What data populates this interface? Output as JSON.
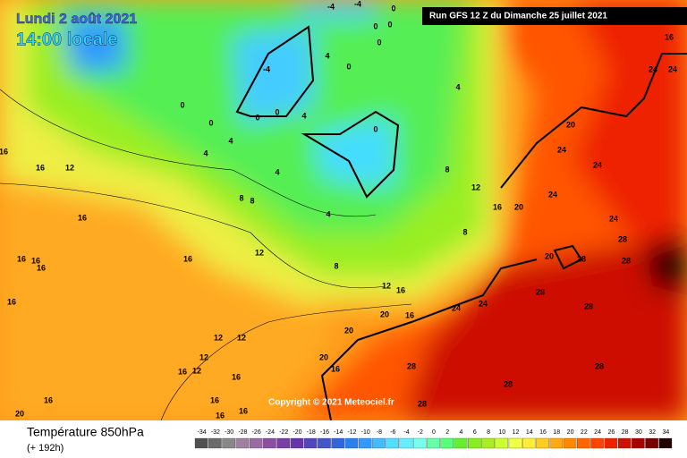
{
  "header": {
    "date": "Lundi 2 août 2021",
    "time": "14:00 locale",
    "run": "Run GFS 12 Z du Dimanche 25 juillet 2021"
  },
  "copyright": "Copyright © 2021 Meteociel.fr",
  "legend": {
    "title": "Température 850hPa",
    "subtitle": "(+ 192h)",
    "scale": [
      {
        "value": -34,
        "color": "#505050"
      },
      {
        "value": -32,
        "color": "#6b6b6b"
      },
      {
        "value": -30,
        "color": "#888888"
      },
      {
        "value": -28,
        "color": "#a080a0"
      },
      {
        "value": -26,
        "color": "#9b6aa0"
      },
      {
        "value": -24,
        "color": "#8a4fa0"
      },
      {
        "value": -22,
        "color": "#7a3fa0"
      },
      {
        "value": -20,
        "color": "#6633aa"
      },
      {
        "value": -18,
        "color": "#5544bb"
      },
      {
        "value": -16,
        "color": "#4455cc"
      },
      {
        "value": -14,
        "color": "#3366dd"
      },
      {
        "value": -12,
        "color": "#2a7ff0"
      },
      {
        "value": -10,
        "color": "#3399ff"
      },
      {
        "value": -8,
        "color": "#44bbff"
      },
      {
        "value": -6,
        "color": "#55ddff"
      },
      {
        "value": -4,
        "color": "#66eeff"
      },
      {
        "value": -2,
        "color": "#77ffee"
      },
      {
        "value": 0,
        "color": "#66ffaa"
      },
      {
        "value": 2,
        "color": "#55ff77"
      },
      {
        "value": 4,
        "color": "#66ee33"
      },
      {
        "value": 6,
        "color": "#88ee22"
      },
      {
        "value": 8,
        "color": "#aaee22"
      },
      {
        "value": 10,
        "color": "#ccff33"
      },
      {
        "value": 12,
        "color": "#eeff44"
      },
      {
        "value": 14,
        "color": "#ffee33"
      },
      {
        "value": 16,
        "color": "#ffcc22"
      },
      {
        "value": 18,
        "color": "#ffaa11"
      },
      {
        "value": 20,
        "color": "#ff8800"
      },
      {
        "value": 22,
        "color": "#ff6600"
      },
      {
        "value": 24,
        "color": "#ff4400"
      },
      {
        "value": 26,
        "color": "#ee2200"
      },
      {
        "value": 28,
        "color": "#cc1100"
      },
      {
        "value": 30,
        "color": "#aa0000"
      },
      {
        "value": 32,
        "color": "#770000"
      },
      {
        "value": 34,
        "color": "#220000"
      }
    ]
  },
  "isotherm_labels": [
    16,
    16,
    12,
    16,
    16,
    16,
    16,
    16,
    16,
    12,
    12,
    12,
    12,
    16,
    12,
    16,
    16,
    16,
    16,
    20,
    16,
    0,
    0,
    4,
    4,
    4,
    8,
    8,
    -4,
    0,
    0,
    4,
    4,
    0,
    0,
    4,
    8,
    12,
    16,
    20,
    20,
    16,
    20,
    16,
    28,
    24,
    24,
    28,
    28,
    28,
    28,
    28,
    20,
    28,
    28,
    28,
    24,
    24,
    20,
    24,
    24,
    24,
    24,
    16,
    20,
    16,
    12,
    8,
    8,
    4,
    0,
    0,
    -4,
    -4,
    0,
    0
  ]
}
